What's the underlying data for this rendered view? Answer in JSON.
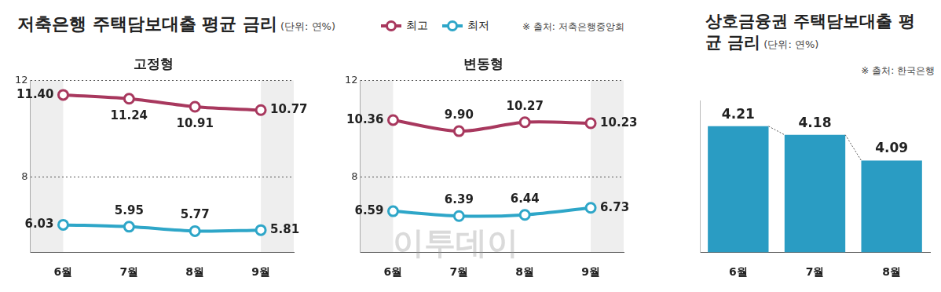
{
  "title": "저축은행 주택담보대출 평균 금리",
  "unit": "(단위: 연%)",
  "source": "※ 출처: 저축은행중앙회",
  "watermark": "이투데이",
  "chart_data": [
    {
      "type": "line",
      "title": "고정형",
      "categories": [
        "6월",
        "7월",
        "8월",
        "9월"
      ],
      "series": [
        {
          "name": "최고",
          "color": "#a8385e",
          "marker": "circle",
          "values": [
            11.4,
            11.24,
            10.91,
            10.77
          ],
          "value_labels": [
            "11.40",
            "11.24",
            "10.91",
            "10.77"
          ]
        },
        {
          "name": "최저",
          "color": "#2ea6c8",
          "marker": "circle",
          "values": [
            6.03,
            5.95,
            5.77,
            5.81
          ],
          "value_labels": [
            "6.03",
            "5.95",
            "5.77",
            "5.81"
          ]
        }
      ],
      "ylim": [
        4.9,
        12
      ],
      "yticks": [
        8,
        12
      ],
      "grid": true,
      "legend": "top",
      "data_labels": true
    },
    {
      "type": "line",
      "title": "변동형",
      "categories": [
        "6월",
        "7월",
        "8월",
        "9월"
      ],
      "series": [
        {
          "name": "최고",
          "color": "#a8385e",
          "marker": "circle",
          "values": [
            10.36,
            9.9,
            10.27,
            10.23
          ],
          "value_labels": [
            "10.36",
            "9.90",
            "10.27",
            "10.23"
          ]
        },
        {
          "name": "최저",
          "color": "#2ea6c8",
          "marker": "circle",
          "values": [
            6.59,
            6.39,
            6.44,
            6.73
          ],
          "value_labels": [
            "6.59",
            "6.39",
            "6.44",
            "6.73"
          ]
        }
      ],
      "ylim": [
        4.9,
        12
      ],
      "yticks": [
        8,
        12
      ],
      "grid": true,
      "data_labels": true
    },
    {
      "type": "bar",
      "title": "상호금융권 주택담보대출 평균 금리",
      "subtitle": "(단위: 연%)",
      "source": "※ 출처: 한국은행",
      "categories": [
        "6월",
        "7월",
        "8월"
      ],
      "values": [
        4.21,
        4.18,
        4.09
      ],
      "color": "#2a9cc3",
      "ylim": [
        3.77,
        4.3
      ],
      "grid": false,
      "data_labels": true,
      "tick_labels": "x"
    }
  ]
}
